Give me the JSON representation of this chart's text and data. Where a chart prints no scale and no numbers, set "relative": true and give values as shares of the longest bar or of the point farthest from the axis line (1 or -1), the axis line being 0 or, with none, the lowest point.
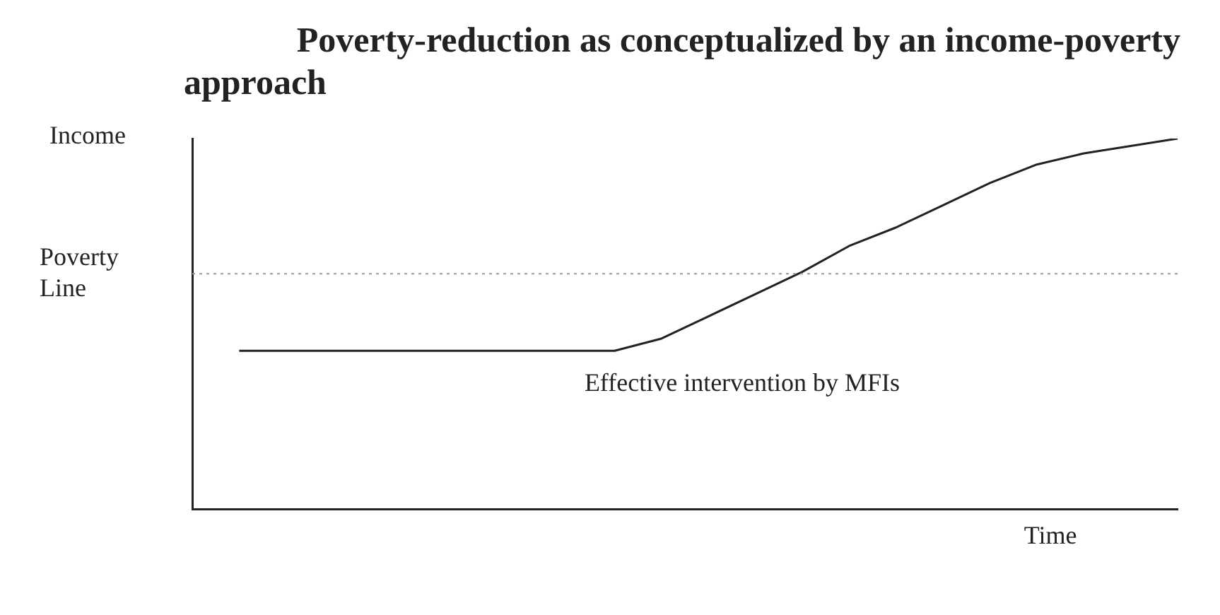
{
  "chart_data": {
    "type": "line",
    "title": "Poverty-reduction as conceptualized by an income-poverty approach",
    "ylabel": "Income",
    "xlabel": "Time",
    "relative": true,
    "categories": [
      null,
      null,
      null,
      null,
      null,
      null,
      null,
      null,
      null,
      null,
      null,
      null,
      null,
      null,
      null,
      null,
      null,
      null,
      null,
      null,
      null,
      null
    ],
    "series": [
      {
        "color": "#222222",
        "values": [
          null,
          0.427,
          0.427,
          0.427,
          0.427,
          0.427,
          0.427,
          0.427,
          0.427,
          0.427,
          0.46,
          0.52,
          0.58,
          0.64,
          0.71,
          0.76,
          0.82,
          0.88,
          0.93,
          0.96,
          0.98,
          1
        ]
      }
    ],
    "ref_lines": [
      {
        "axis": "y",
        "value": 0.635,
        "label": "Poverty Line",
        "color": "#999999",
        "line_style": "dotted"
      }
    ],
    "annotations": [
      "Effective intervention by MFIs"
    ],
    "grid": false,
    "legend": false,
    "marker": "none",
    "line_style": "solid"
  }
}
